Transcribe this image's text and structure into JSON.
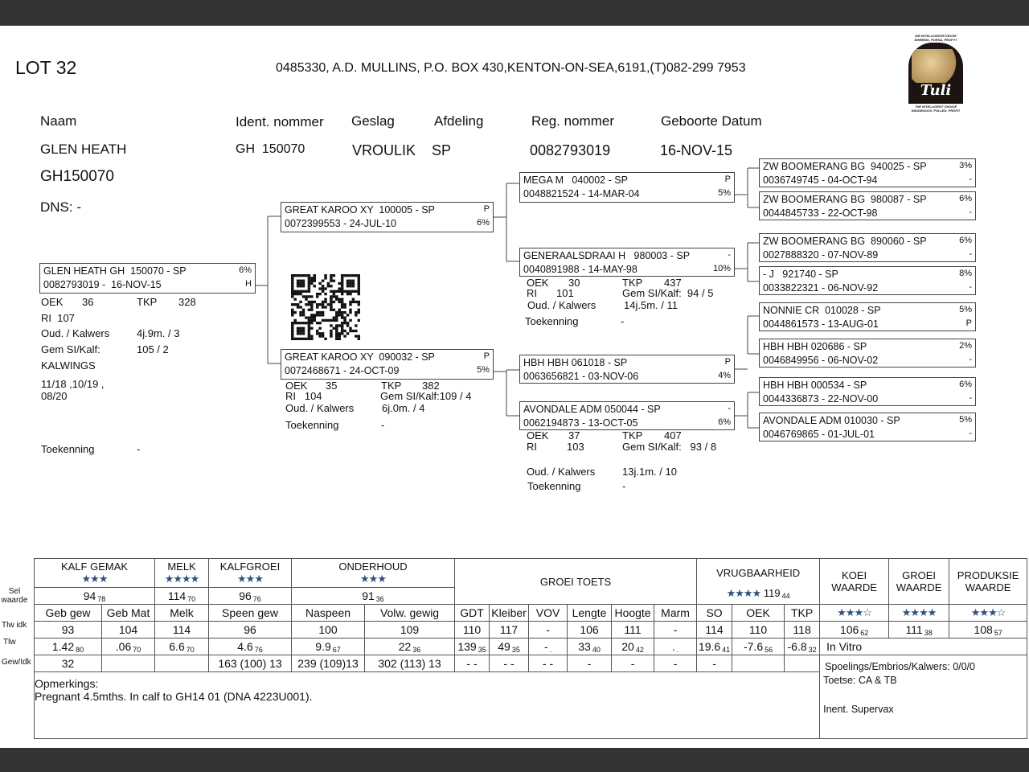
{
  "header": {
    "lot": "LOT 32",
    "owner": "0485330, A.D. MULLINS, P.O. BOX 430,KENTON-ON-SEA,6191,(T)082-299 7953"
  },
  "logo": {
    "top_line1": "DIE INTELLIGENTE KEUSE",
    "top_line2": "INHEEMS, POENA, PROFYT",
    "brand": "Tuli",
    "bottom_line1": "THE INTELLIGENT CHOICE",
    "bottom_line2": "INDIGENOUS, POLLED, PROFIT"
  },
  "animal": {
    "labels": {
      "name": "Naam",
      "ident": "Ident. nommer",
      "sex": "Geslag",
      "section": "Afdeling",
      "reg": "Reg. nommer",
      "dob": "Geboorte Datum"
    },
    "values": {
      "name": "GLEN HEATH",
      "ident": "GH  150070",
      "sex": "VROULIK",
      "section": "SP",
      "reg": "0082793019",
      "dob": "16-NOV-15"
    },
    "code": "GH150070",
    "dns": "DNS: -"
  },
  "pedigree": [
    {
      "name": "GLEN HEATH GH  150070 - SP",
      "reg_date": "0082793019 -  16-NOV-15",
      "top_right": "6%",
      "bottom_right": "H"
    },
    {
      "name": "GREAT KAROO XY  100005 - SP",
      "reg_date": "0072399553 - 24-JUL-10",
      "top_right": "P",
      "bottom_right": "6%"
    },
    {
      "name": "GREAT KAROO XY  090032 - SP",
      "reg_date": "0072468671 - 24-OCT-09",
      "top_right": "P",
      "bottom_right": "5%"
    },
    {
      "name": "MEGA M   040002 - SP",
      "reg_date": "0048821524 - 14-MAR-04",
      "top_right": "P",
      "bottom_right": "5%"
    },
    {
      "name": "GENERAALSDRAAI H   980003 - SP",
      "reg_date": "0040891988 - 14-MAY-98",
      "top_right": "-",
      "bottom_right": "10%"
    },
    {
      "name": "HBH HBH 061018 - SP",
      "reg_date": "0063656821 - 03-NOV-06",
      "top_right": "P",
      "bottom_right": "4%"
    },
    {
      "name": "AVONDALE ADM 050044 - SP",
      "reg_date": "0062194873 - 13-OCT-05",
      "top_right": "-",
      "bottom_right": "6%"
    },
    {
      "name": "ZW BOOMERANG BG  940025 - SP",
      "reg_date": "0036749745 - 04-OCT-94",
      "top_right": "3%",
      "bottom_right": "-"
    },
    {
      "name": "ZW BOOMERANG BG  980087 - SP",
      "reg_date": "0044845733 - 22-OCT-98",
      "top_right": "6%",
      "bottom_right": "-"
    },
    {
      "name": "ZW BOOMERANG BG  890060 - SP",
      "reg_date": "0027888320 - 07-NOV-89",
      "top_right": "6%",
      "bottom_right": "-"
    },
    {
      "name": "- J   921740 - SP",
      "reg_date": "0033822321 - 06-NOV-92",
      "top_right": "8%",
      "bottom_right": "-"
    },
    {
      "name": "NONNIE CR  010028 - SP",
      "reg_date": "0044861573 - 13-AUG-01",
      "top_right": "5%",
      "bottom_right": "P"
    },
    {
      "name": "HBH HBH 020686 - SP",
      "reg_date": "0046849956 - 06-NOV-02",
      "top_right": "2%",
      "bottom_right": "-"
    },
    {
      "name": "HBH HBH 000534 - SP",
      "reg_date": "0044336873 - 22-NOV-00",
      "top_right": "6%",
      "bottom_right": "-"
    },
    {
      "name": "AVONDALE ADM 010030 - SP",
      "reg_date": "0046769865 - 01-JUL-01",
      "top_right": "5%",
      "bottom_right": "-"
    }
  ],
  "subject_stats": {
    "oek_label": "OEK",
    "oek": "36",
    "tkp_label": "TKP",
    "tkp": "328",
    "ri": "RI  107",
    "age_label": "Oud. / Kalwers",
    "age": "4j.9m. / 3",
    "gem_label": "Gem SI/Kalf:",
    "gem": "105 / 2",
    "calvings_label": "KALWINGS",
    "calvings_1": "11/18 ,10/19 ,",
    "calvings_2": "08/20",
    "award_label": "Toekenning",
    "award": "-"
  },
  "dam_stats": {
    "oek_label": "OEK",
    "oek": "35",
    "tkp_label": "TKP",
    "tkp": "382",
    "ri": "RI   104",
    "gem": "Gem SI/Kalf:109 / 4",
    "age_label": "Oud. / Kalwers",
    "age": "6j.0m. / 4",
    "award_label": "Toekenning",
    "award": "-"
  },
  "sire_dam_stats": {
    "oek_label": "OEK",
    "oek": "30",
    "tkp_label": "TKP",
    "tkp": "437",
    "ri_label": "RI",
    "ri": "101",
    "gem": "Gem SI/Kalf:  94 / 5",
    "age_label": "Oud. / Kalwers",
    "age": "14j.5m. / 11",
    "award_label": "Toekenning",
    "award": "-"
  },
  "dam_dam_stats": {
    "oek_label": "OEK",
    "oek": "37",
    "tkp_label": "TKP",
    "tkp": "407",
    "ri_label": "RI",
    "ri": "103",
    "gem": "Gem SI/Kalf:   93 / 8",
    "age_label": "Oud. / Kalwers",
    "age": "13j.1m. / 10",
    "award_label": "Toekenning",
    "award": "-"
  },
  "row_labels": {
    "sel": "Sel\nwaarde",
    "tlw_idk": "Tlw idk",
    "tlw": "Tlw",
    "gew_idk": "Gew/Idk"
  },
  "indexes": {
    "kalf_gemak": {
      "label": "KALF GEMAK",
      "stars": "★★★",
      "v": "94",
      "s": "78"
    },
    "melk": {
      "label": "MELK",
      "stars": "★★★★",
      "v": "114",
      "s": "70"
    },
    "kalfgroei": {
      "label": "KALFGROEI",
      "stars": "★★★",
      "v": "96",
      "s": "76"
    },
    "onderhoud": {
      "label": "ONDERHOUD",
      "stars": "★★★",
      "v": "91",
      "s": "36"
    },
    "groei_toets": {
      "label": "GROEI TOETS"
    },
    "vrugbaarheid": {
      "label": "VRUGBAARHEID",
      "stars": "★★★★",
      "v": "119",
      "s": "44"
    },
    "koei": {
      "label": "KOEI\nWAARDE",
      "stars": "★★★☆",
      "v": "106",
      "s": "62"
    },
    "groei": {
      "label": "GROEI\nWAARDE",
      "stars": "★★★★",
      "v": "111",
      "s": "38"
    },
    "produksie": {
      "label": "PRODUKSIE\nWAARDE",
      "stars": "★★★☆",
      "v": "108",
      "s": "57"
    }
  },
  "traits": [
    {
      "h": "Geb gew",
      "idk": "93",
      "v": "1.42",
      "s": "80",
      "gew": "32"
    },
    {
      "h": "Geb Mat",
      "idk": "104",
      "v": ".06",
      "s": "70",
      "gew": ""
    },
    {
      "h": "Melk",
      "idk": "114",
      "v": "6.6",
      "s": "70",
      "gew": ""
    },
    {
      "h": "Speen gew",
      "idk": "96",
      "v": "4.6",
      "s": "76",
      "gew": "163 (100) 13"
    },
    {
      "h": "Naspeen",
      "idk": "100",
      "v": "9.9",
      "s": "67",
      "gew": "239 (109)13"
    },
    {
      "h": "Volw. gewig",
      "idk": "109",
      "v": "22",
      "s": "36",
      "gew": "302 (113)  13"
    },
    {
      "h": "GDT",
      "idk": "110",
      "v": "139",
      "s": "35",
      "gew": "-    -"
    },
    {
      "h": "Kleiber",
      "idk": "117",
      "v": "49",
      "s": "35",
      "gew": "- -"
    },
    {
      "h": "VOV",
      "idk": "-",
      "v": "-",
      "s": ".",
      "gew": "-    -"
    },
    {
      "h": "Lengte",
      "idk": "106",
      "v": "33",
      "s": "40",
      "gew": "-"
    },
    {
      "h": "Hoogte",
      "idk": "111",
      "v": "20",
      "s": "42",
      "gew": "-"
    },
    {
      "h": "Marm",
      "idk": "-",
      "v": ".",
      "s": ".",
      "gew": "-"
    },
    {
      "h": "SO",
      "idk": "114",
      "v": "19.6",
      "s": "41",
      "gew": "-"
    },
    {
      "h": "OEK",
      "idk": "110",
      "v": "-7.6",
      "s": "56",
      "gew": ""
    },
    {
      "h": "TKP",
      "idk": "118",
      "v": "-6.8",
      "s": "32",
      "gew": ""
    }
  ],
  "extra": {
    "in_vitro": "In Vitro",
    "spoelings": "Spoelings/Embrios/Kalwers:  0/0/0",
    "toetse": "Toetse: CA & TB",
    "inent": "Inent. Supervax"
  },
  "remarks": {
    "label": "Opmerkings:",
    "text": "Pregnant 4.5mths. In calf to GH14 01 (DNA 4223U001)."
  },
  "colors": {
    "stars": "#2f4f7f",
    "bars": "#333333"
  }
}
